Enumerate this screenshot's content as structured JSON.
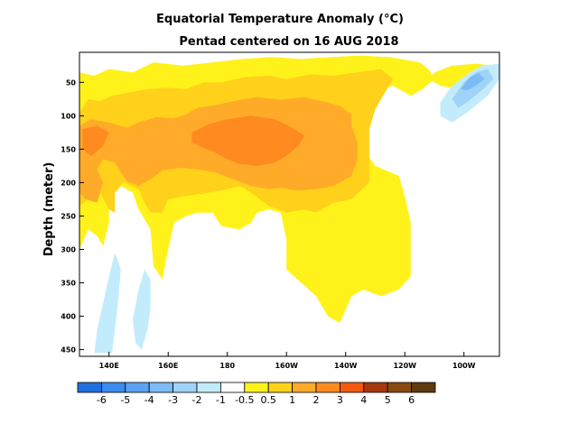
{
  "chart_data": {
    "type": "heatmap",
    "title": "Equatorial Temperature Anomaly (°C)",
    "subtitle": "Pentad centered on 16 AUG 2018",
    "xlabel": "",
    "ylabel": "Depth (meter)",
    "xlim_deg_east": [
      130,
      272
    ],
    "ylim_m": [
      460,
      5
    ],
    "x_ticks": [
      {
        "lon": 140,
        "label": "140E"
      },
      {
        "lon": 160,
        "label": "160E"
      },
      {
        "lon": 180,
        "label": "180"
      },
      {
        "lon": 200,
        "label": "160W"
      },
      {
        "lon": 220,
        "label": "140W"
      },
      {
        "lon": 240,
        "label": "120W"
      },
      {
        "lon": 260,
        "label": "100W"
      }
    ],
    "y_ticks": [
      50,
      100,
      150,
      200,
      250,
      300,
      350,
      400,
      450
    ],
    "colorbar": {
      "labels": [
        "-6",
        "-5",
        "-4",
        "-3",
        "-2",
        "-1",
        "-0.5",
        "0.5",
        "1",
        "2",
        "3",
        "4",
        "5",
        "6"
      ],
      "colors": [
        "#1f6fe0",
        "#3c8bef",
        "#5aa3f3",
        "#7bbcf6",
        "#9fd3f8",
        "#c2ecfb",
        "#ffffff",
        "#fff21a",
        "#ffd11a",
        "#ffab29",
        "#ff8a1f",
        "#f25a10",
        "#a6380e",
        "#8a4a10",
        "#5e3a10"
      ]
    },
    "anomaly_regions": [
      {
        "level": 0.5,
        "color": "#fff21a",
        "polygon": [
          [
            130,
            35
          ],
          [
            135,
            40
          ],
          [
            140,
            30
          ],
          [
            148,
            35
          ],
          [
            155,
            20
          ],
          [
            165,
            25
          ],
          [
            175,
            20
          ],
          [
            185,
            15
          ],
          [
            195,
            12
          ],
          [
            205,
            15
          ],
          [
            215,
            12
          ],
          [
            225,
            10
          ],
          [
            235,
            12
          ],
          [
            245,
            20
          ],
          [
            248,
            30
          ],
          [
            250,
            45
          ],
          [
            246,
            60
          ],
          [
            242,
            70
          ],
          [
            236,
            55
          ],
          [
            232,
            60
          ],
          [
            230,
            80
          ],
          [
            228,
            110
          ],
          [
            226,
            130
          ],
          [
            226,
            150
          ],
          [
            230,
            175
          ],
          [
            238,
            190
          ],
          [
            240,
            220
          ],
          [
            242,
            260
          ],
          [
            242,
            300
          ],
          [
            242,
            340
          ],
          [
            238,
            360
          ],
          [
            232,
            370
          ],
          [
            226,
            360
          ],
          [
            222,
            370
          ],
          [
            218,
            410
          ],
          [
            214,
            400
          ],
          [
            210,
            370
          ],
          [
            205,
            350
          ],
          [
            200,
            330
          ],
          [
            200,
            285
          ],
          [
            198,
            245
          ],
          [
            194,
            240
          ],
          [
            190,
            245
          ],
          [
            188,
            260
          ],
          [
            184,
            270
          ],
          [
            178,
            265
          ],
          [
            175,
            245
          ],
          [
            170,
            245
          ],
          [
            166,
            250
          ],
          [
            162,
            260
          ],
          [
            160,
            300
          ],
          [
            158,
            345
          ],
          [
            155,
            325
          ],
          [
            154,
            270
          ],
          [
            150,
            240
          ],
          [
            148,
            215
          ],
          [
            144,
            205
          ],
          [
            140,
            205
          ],
          [
            140,
            230
          ],
          [
            140,
            260
          ],
          [
            138,
            295
          ],
          [
            136,
            280
          ],
          [
            133,
            270
          ],
          [
            130,
            300
          ]
        ]
      },
      {
        "level": 1,
        "color": "#ffd11a",
        "polygon": [
          [
            130,
            95
          ],
          [
            133,
            75
          ],
          [
            137,
            78
          ],
          [
            141,
            70
          ],
          [
            147,
            65
          ],
          [
            153,
            60
          ],
          [
            160,
            58
          ],
          [
            166,
            60
          ],
          [
            172,
            50
          ],
          [
            178,
            50
          ],
          [
            186,
            42
          ],
          [
            194,
            40
          ],
          [
            200,
            45
          ],
          [
            208,
            38
          ],
          [
            216,
            40
          ],
          [
            224,
            35
          ],
          [
            232,
            30
          ],
          [
            236,
            45
          ],
          [
            234,
            60
          ],
          [
            230,
            90
          ],
          [
            228,
            120
          ],
          [
            228,
            160
          ],
          [
            228,
            200
          ],
          [
            222,
            225
          ],
          [
            216,
            230
          ],
          [
            210,
            245
          ],
          [
            206,
            240
          ],
          [
            200,
            245
          ],
          [
            194,
            235
          ],
          [
            188,
            215
          ],
          [
            184,
            205
          ],
          [
            180,
            210
          ],
          [
            174,
            215
          ],
          [
            166,
            220
          ],
          [
            160,
            225
          ],
          [
            158,
            245
          ],
          [
            154,
            245
          ],
          [
            152,
            230
          ],
          [
            150,
            210
          ],
          [
            145,
            200
          ],
          [
            142,
            215
          ],
          [
            142,
            245
          ],
          [
            140,
            240
          ],
          [
            137,
            215
          ],
          [
            133,
            225
          ],
          [
            130,
            235
          ]
        ]
      },
      {
        "level": 2,
        "color": "#ffab29",
        "polygon": [
          [
            130,
            115
          ],
          [
            134,
            105
          ],
          [
            140,
            110
          ],
          [
            146,
            118
          ],
          [
            150,
            110
          ],
          [
            156,
            102
          ],
          [
            162,
            104
          ],
          [
            166,
            98
          ],
          [
            170,
            88
          ],
          [
            176,
            84
          ],
          [
            182,
            78
          ],
          [
            190,
            72
          ],
          [
            198,
            76
          ],
          [
            206,
            72
          ],
          [
            212,
            78
          ],
          [
            218,
            85
          ],
          [
            222,
            98
          ],
          [
            222,
            115
          ],
          [
            224,
            140
          ],
          [
            224,
            165
          ],
          [
            222,
            190
          ],
          [
            216,
            205
          ],
          [
            210,
            210
          ],
          [
            204,
            212
          ],
          [
            198,
            208
          ],
          [
            194,
            210
          ],
          [
            188,
            205
          ],
          [
            182,
            195
          ],
          [
            176,
            185
          ],
          [
            170,
            180
          ],
          [
            164,
            178
          ],
          [
            158,
            182
          ],
          [
            154,
            195
          ],
          [
            150,
            205
          ],
          [
            146,
            198
          ],
          [
            144,
            185
          ],
          [
            142,
            170
          ],
          [
            138,
            165
          ],
          [
            136,
            180
          ],
          [
            138,
            200
          ],
          [
            136,
            230
          ],
          [
            132,
            225
          ],
          [
            130,
            215
          ]
        ]
      },
      {
        "level": 3,
        "color": "#ff8a1f",
        "polygon": [
          [
            168,
            125
          ],
          [
            174,
            112
          ],
          [
            180,
            105
          ],
          [
            188,
            100
          ],
          [
            196,
            105
          ],
          [
            202,
            118
          ],
          [
            206,
            130
          ],
          [
            204,
            145
          ],
          [
            200,
            160
          ],
          [
            196,
            170
          ],
          [
            190,
            175
          ],
          [
            184,
            172
          ],
          [
            180,
            165
          ],
          [
            176,
            155
          ],
          [
            172,
            148
          ],
          [
            168,
            140
          ]
        ]
      },
      {
        "level": 3,
        "color": "#ff8a1f",
        "polygon": [
          [
            131,
            120
          ],
          [
            136,
            115
          ],
          [
            140,
            125
          ],
          [
            138,
            145
          ],
          [
            134,
            160
          ],
          [
            131,
            150
          ]
        ]
      },
      {
        "level": 0.5,
        "color": "#fff21a",
        "polygon": [
          [
            250,
            35
          ],
          [
            256,
            25
          ],
          [
            264,
            22
          ],
          [
            270,
            25
          ],
          [
            268,
            40
          ],
          [
            262,
            55
          ],
          [
            258,
            60
          ],
          [
            252,
            55
          ],
          [
            248,
            45
          ]
        ]
      },
      {
        "level": -0.5,
        "color": "#c2ecfb",
        "polygon": [
          [
            252,
            80
          ],
          [
            256,
            55
          ],
          [
            262,
            35
          ],
          [
            266,
            25
          ],
          [
            272,
            22
          ],
          [
            272,
            45
          ],
          [
            268,
            70
          ],
          [
            262,
            92
          ],
          [
            256,
            110
          ],
          [
            252,
            100
          ]
        ]
      },
      {
        "level": -1,
        "color": "#9fd3f8",
        "polygon": [
          [
            256,
            75
          ],
          [
            260,
            50
          ],
          [
            264,
            35
          ],
          [
            268,
            30
          ],
          [
            270,
            45
          ],
          [
            266,
            62
          ],
          [
            261,
            80
          ],
          [
            258,
            88
          ]
        ]
      },
      {
        "level": -2,
        "color": "#7bbcf6",
        "polygon": [
          [
            259,
            60
          ],
          [
            262,
            42
          ],
          [
            265,
            36
          ],
          [
            267,
            45
          ],
          [
            264,
            55
          ],
          [
            261,
            62
          ]
        ]
      },
      {
        "level": -0.5,
        "color": "#c2ecfb",
        "polygon": [
          [
            135,
            455
          ],
          [
            136,
            420
          ],
          [
            138,
            380
          ],
          [
            140,
            340
          ],
          [
            142,
            305
          ],
          [
            144,
            330
          ],
          [
            143,
            380
          ],
          [
            142,
            420
          ],
          [
            141,
            455
          ]
        ]
      },
      {
        "level": -0.5,
        "color": "#c2ecfb",
        "polygon": [
          [
            149,
            440
          ],
          [
            148,
            405
          ],
          [
            150,
            360
          ],
          [
            152,
            330
          ],
          [
            154,
            345
          ],
          [
            154,
            390
          ],
          [
            153,
            420
          ],
          [
            151,
            450
          ]
        ]
      }
    ]
  }
}
